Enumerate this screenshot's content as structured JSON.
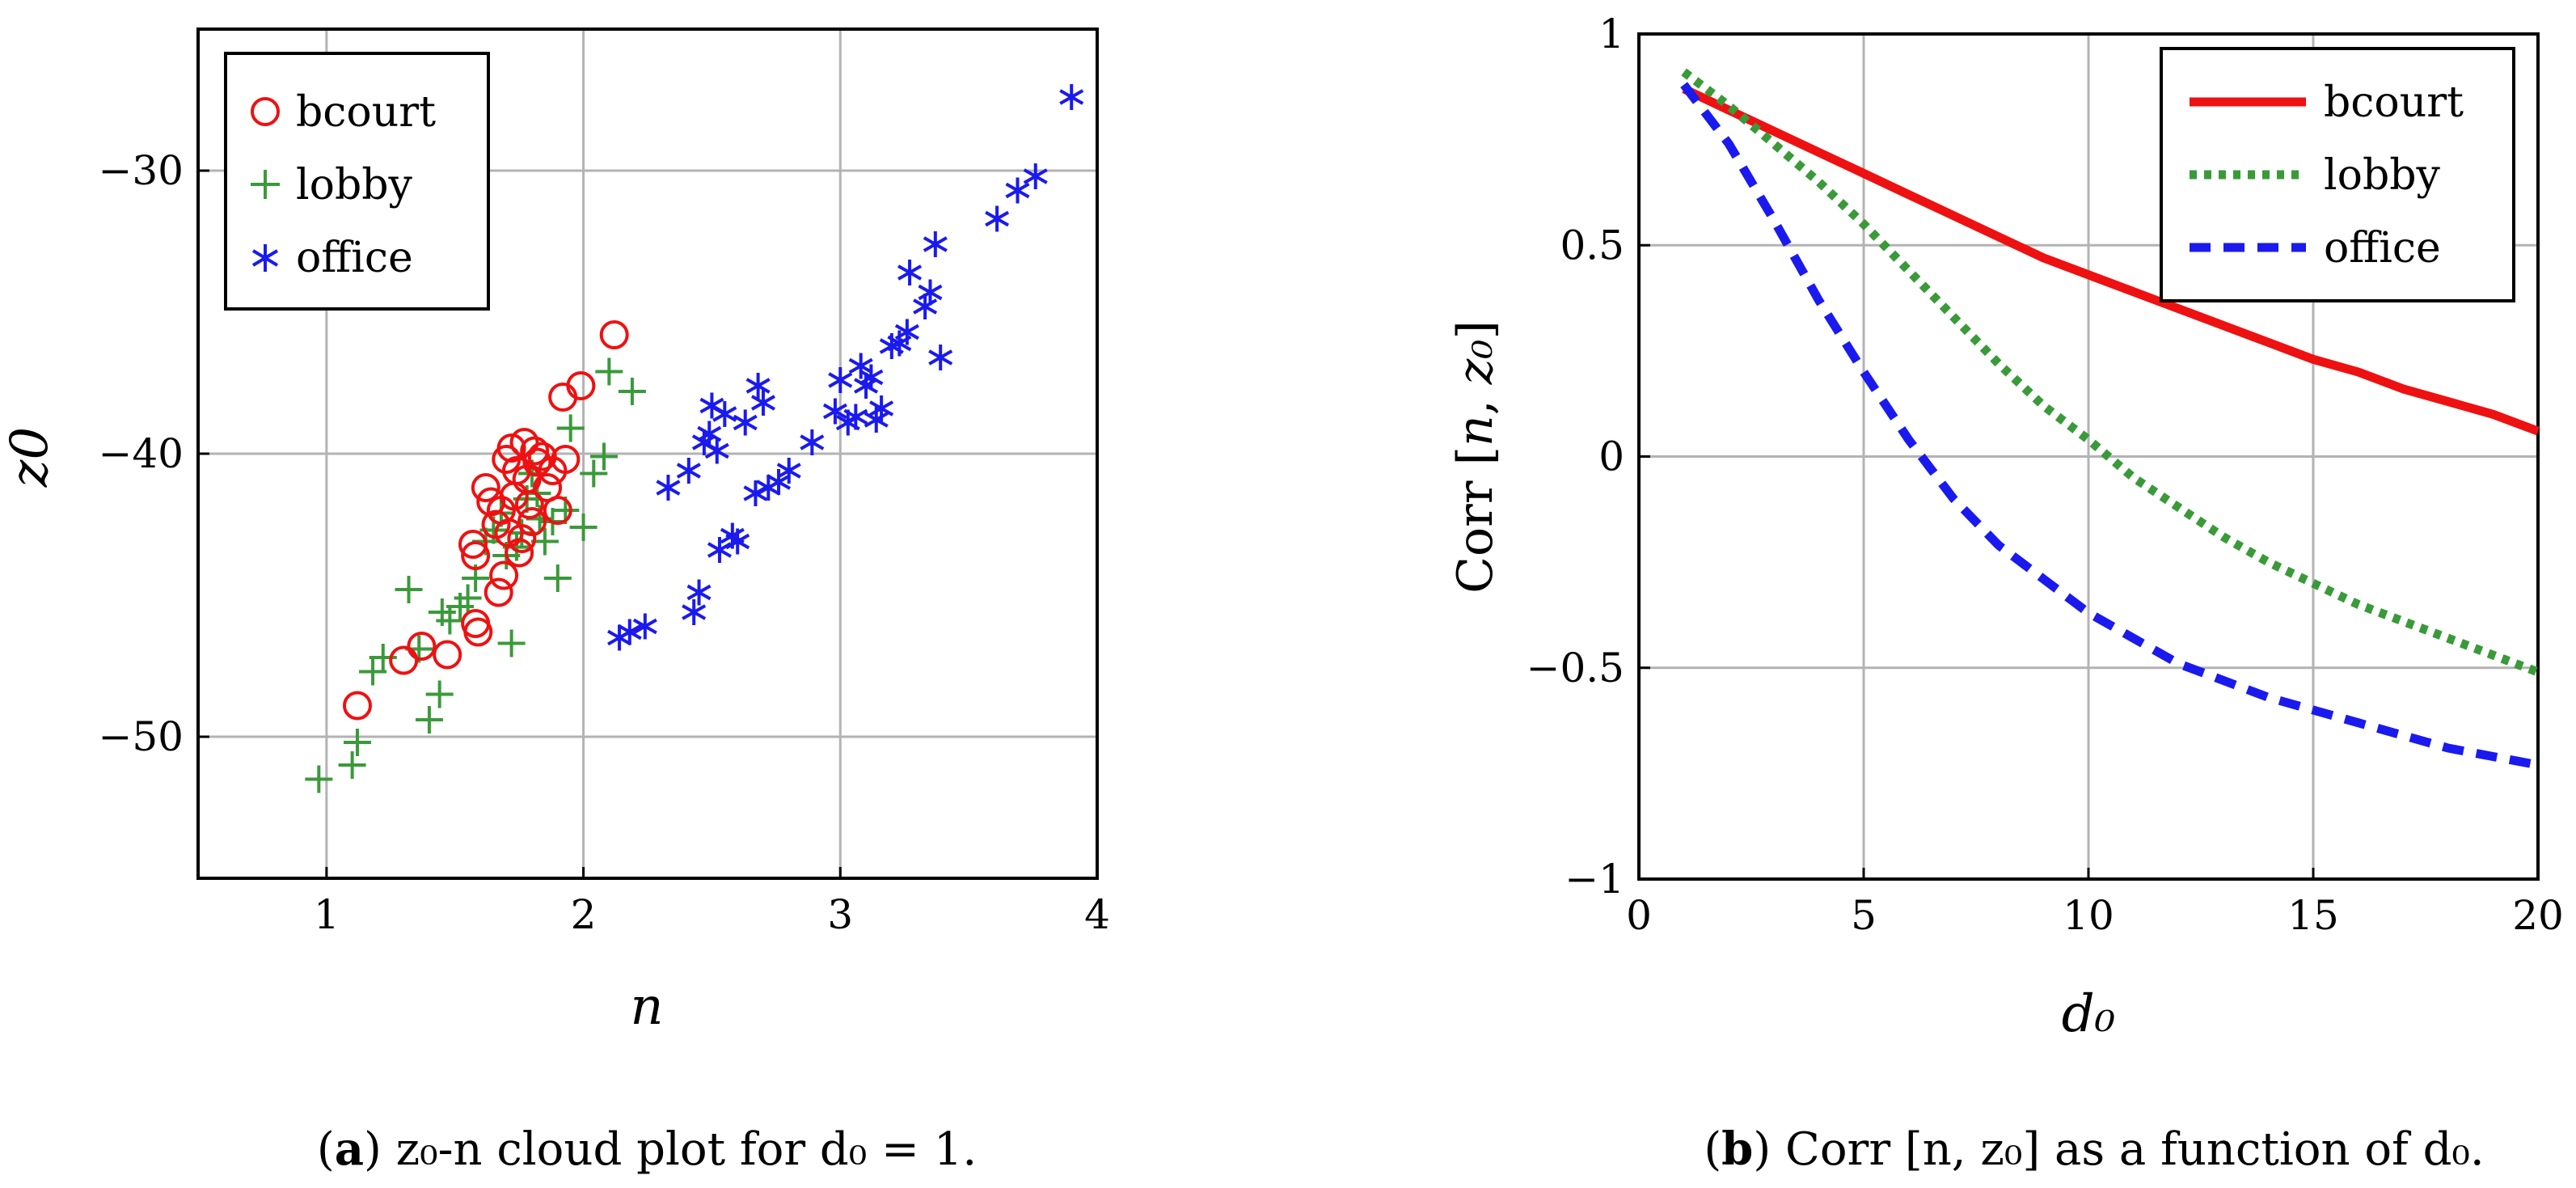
{
  "colors": {
    "bcourt": "#ee1111",
    "lobby": "#3a9a3a",
    "office": "#1a1aee"
  },
  "chart_data": [
    {
      "type": "scatter",
      "xlabel": "n",
      "ylabel": "z0",
      "xlim": [
        0.5,
        4
      ],
      "ylim": [
        -55,
        -25
      ],
      "xticks": [
        1,
        2,
        3,
        4
      ],
      "yticks": [
        -30,
        -40,
        -50
      ],
      "grid": true,
      "legend_position": "top-left",
      "caption": {
        "tag": "a",
        "text": " z₀-n cloud plot for d₀ = 1."
      },
      "series": [
        {
          "name": "bcourt",
          "marker": "circle",
          "points": [
            [
              1.12,
              -48.9
            ],
            [
              1.3,
              -47.3
            ],
            [
              1.37,
              -46.8
            ],
            [
              1.47,
              -47.1
            ],
            [
              1.59,
              -46.3
            ],
            [
              1.58,
              -46.0
            ],
            [
              1.57,
              -43.2
            ],
            [
              1.58,
              -43.6
            ],
            [
              1.62,
              -41.2
            ],
            [
              1.64,
              -41.7
            ],
            [
              1.66,
              -42.5
            ],
            [
              1.67,
              -44.9
            ],
            [
              1.69,
              -44.3
            ],
            [
              1.7,
              -40.2
            ],
            [
              1.72,
              -39.8
            ],
            [
              1.71,
              -42.8
            ],
            [
              1.73,
              -41.5
            ],
            [
              1.74,
              -40.6
            ],
            [
              1.76,
              -43.0
            ],
            [
              1.77,
              -39.6
            ],
            [
              1.78,
              -40.9
            ],
            [
              1.79,
              -41.8
            ],
            [
              1.8,
              -42.4
            ],
            [
              1.82,
              -40.3
            ],
            [
              1.84,
              -40.1
            ],
            [
              1.86,
              -41.2
            ],
            [
              1.88,
              -40.6
            ],
            [
              1.9,
              -42.0
            ],
            [
              1.93,
              -40.2
            ],
            [
              1.92,
              -38.0
            ],
            [
              1.99,
              -37.6
            ],
            [
              2.12,
              -35.8
            ],
            [
              1.75,
              -43.5
            ],
            [
              1.68,
              -42.0
            ],
            [
              1.81,
              -39.9
            ]
          ]
        },
        {
          "name": "lobby",
          "marker": "plus",
          "points": [
            [
              0.97,
              -51.5
            ],
            [
              1.1,
              -51.0
            ],
            [
              1.12,
              -50.2
            ],
            [
              1.18,
              -47.7
            ],
            [
              1.22,
              -47.2
            ],
            [
              1.32,
              -44.8
            ],
            [
              1.36,
              -46.9
            ],
            [
              1.4,
              -49.4
            ],
            [
              1.44,
              -48.5
            ],
            [
              1.45,
              -45.6
            ],
            [
              1.48,
              -45.9
            ],
            [
              1.52,
              -45.4
            ],
            [
              1.55,
              -45.1
            ],
            [
              1.58,
              -44.4
            ],
            [
              1.62,
              -43.1
            ],
            [
              1.65,
              -42.7
            ],
            [
              1.68,
              -42.1
            ],
            [
              1.72,
              -46.7
            ],
            [
              1.74,
              -43.3
            ],
            [
              1.76,
              -42.8
            ],
            [
              1.78,
              -41.6
            ],
            [
              1.8,
              -40.7
            ],
            [
              1.83,
              -42.3
            ],
            [
              1.85,
              -43.1
            ],
            [
              1.88,
              -42.4
            ],
            [
              1.9,
              -44.4
            ],
            [
              1.93,
              -42.0
            ],
            [
              1.95,
              -39.1
            ],
            [
              2.0,
              -42.6
            ],
            [
              2.04,
              -40.7
            ],
            [
              2.08,
              -40.1
            ],
            [
              2.1,
              -37.1
            ],
            [
              2.19,
              -37.8
            ],
            [
              1.7,
              -43.6
            ],
            [
              1.82,
              -41.4
            ]
          ]
        },
        {
          "name": "office",
          "marker": "asterisk",
          "points": [
            [
              2.14,
              -46.5
            ],
            [
              2.18,
              -46.3
            ],
            [
              2.24,
              -46.1
            ],
            [
              2.33,
              -41.2
            ],
            [
              2.41,
              -40.6
            ],
            [
              2.43,
              -45.6
            ],
            [
              2.45,
              -44.9
            ],
            [
              2.47,
              -39.6
            ],
            [
              2.49,
              -39.3
            ],
            [
              2.5,
              -38.3
            ],
            [
              2.52,
              -39.9
            ],
            [
              2.53,
              -43.4
            ],
            [
              2.55,
              -38.6
            ],
            [
              2.58,
              -42.9
            ],
            [
              2.6,
              -43.1
            ],
            [
              2.63,
              -38.9
            ],
            [
              2.67,
              -41.4
            ],
            [
              2.68,
              -37.6
            ],
            [
              2.7,
              -38.2
            ],
            [
              2.72,
              -41.2
            ],
            [
              2.76,
              -41.0
            ],
            [
              2.8,
              -40.6
            ],
            [
              2.89,
              -39.6
            ],
            [
              2.98,
              -38.5
            ],
            [
              3.0,
              -37.4
            ],
            [
              3.03,
              -38.9
            ],
            [
              3.06,
              -38.7
            ],
            [
              3.08,
              -36.9
            ],
            [
              3.1,
              -37.6
            ],
            [
              3.12,
              -37.3
            ],
            [
              3.14,
              -38.8
            ],
            [
              3.16,
              -38.4
            ],
            [
              3.2,
              -36.2
            ],
            [
              3.23,
              -36.1
            ],
            [
              3.26,
              -35.7
            ],
            [
              3.27,
              -33.6
            ],
            [
              3.33,
              -34.8
            ],
            [
              3.35,
              -34.3
            ],
            [
              3.37,
              -32.6
            ],
            [
              3.39,
              -36.6
            ],
            [
              3.61,
              -31.7
            ],
            [
              3.69,
              -30.7
            ],
            [
              3.76,
              -30.2
            ],
            [
              3.9,
              -27.4
            ]
          ]
        }
      ]
    },
    {
      "type": "line",
      "xlabel": "d₀",
      "ylabel_main": "Corr ",
      "ylabel_bracket_open": "[",
      "ylabel_n": "n",
      "ylabel_comma": ", ",
      "ylabel_z": "z₀",
      "ylabel_bracket_close": "]",
      "xlim": [
        0,
        20
      ],
      "ylim": [
        -1,
        1
      ],
      "xticks": [
        0,
        5,
        10,
        15,
        20
      ],
      "yticks": [
        1,
        0.5,
        0,
        -0.5,
        -1
      ],
      "grid": true,
      "legend_position": "top-right",
      "caption": {
        "tag": "b",
        "text": " Corr [n, z₀] as a function of d₀."
      },
      "series": [
        {
          "name": "bcourt",
          "style": "solid",
          "x": [
            1,
            2,
            3,
            4,
            5,
            6,
            7,
            8,
            9,
            10,
            11,
            12,
            13,
            14,
            15,
            16,
            17,
            18,
            19,
            20
          ],
          "values": [
            0.87,
            0.82,
            0.77,
            0.72,
            0.67,
            0.62,
            0.57,
            0.52,
            0.47,
            0.43,
            0.39,
            0.35,
            0.31,
            0.27,
            0.23,
            0.2,
            0.16,
            0.13,
            0.1,
            0.06
          ]
        },
        {
          "name": "lobby",
          "style": "dotted",
          "x": [
            1,
            2,
            3,
            4,
            5,
            6,
            7,
            8,
            9,
            10,
            11,
            12,
            13,
            14,
            15,
            16,
            17,
            18,
            19,
            20
          ],
          "values": [
            0.91,
            0.83,
            0.74,
            0.65,
            0.55,
            0.44,
            0.33,
            0.22,
            0.12,
            0.04,
            -0.05,
            -0.12,
            -0.19,
            -0.25,
            -0.3,
            -0.35,
            -0.39,
            -0.43,
            -0.47,
            -0.51
          ]
        },
        {
          "name": "office",
          "style": "dashed",
          "x": [
            1,
            2,
            3,
            4,
            5,
            6,
            7,
            8,
            9,
            10,
            11,
            12,
            13,
            14,
            15,
            16,
            17,
            18,
            19,
            20
          ],
          "values": [
            0.88,
            0.74,
            0.56,
            0.37,
            0.2,
            0.04,
            -0.1,
            -0.21,
            -0.29,
            -0.37,
            -0.43,
            -0.49,
            -0.53,
            -0.57,
            -0.6,
            -0.63,
            -0.66,
            -0.69,
            -0.71,
            -0.73
          ]
        }
      ]
    }
  ]
}
